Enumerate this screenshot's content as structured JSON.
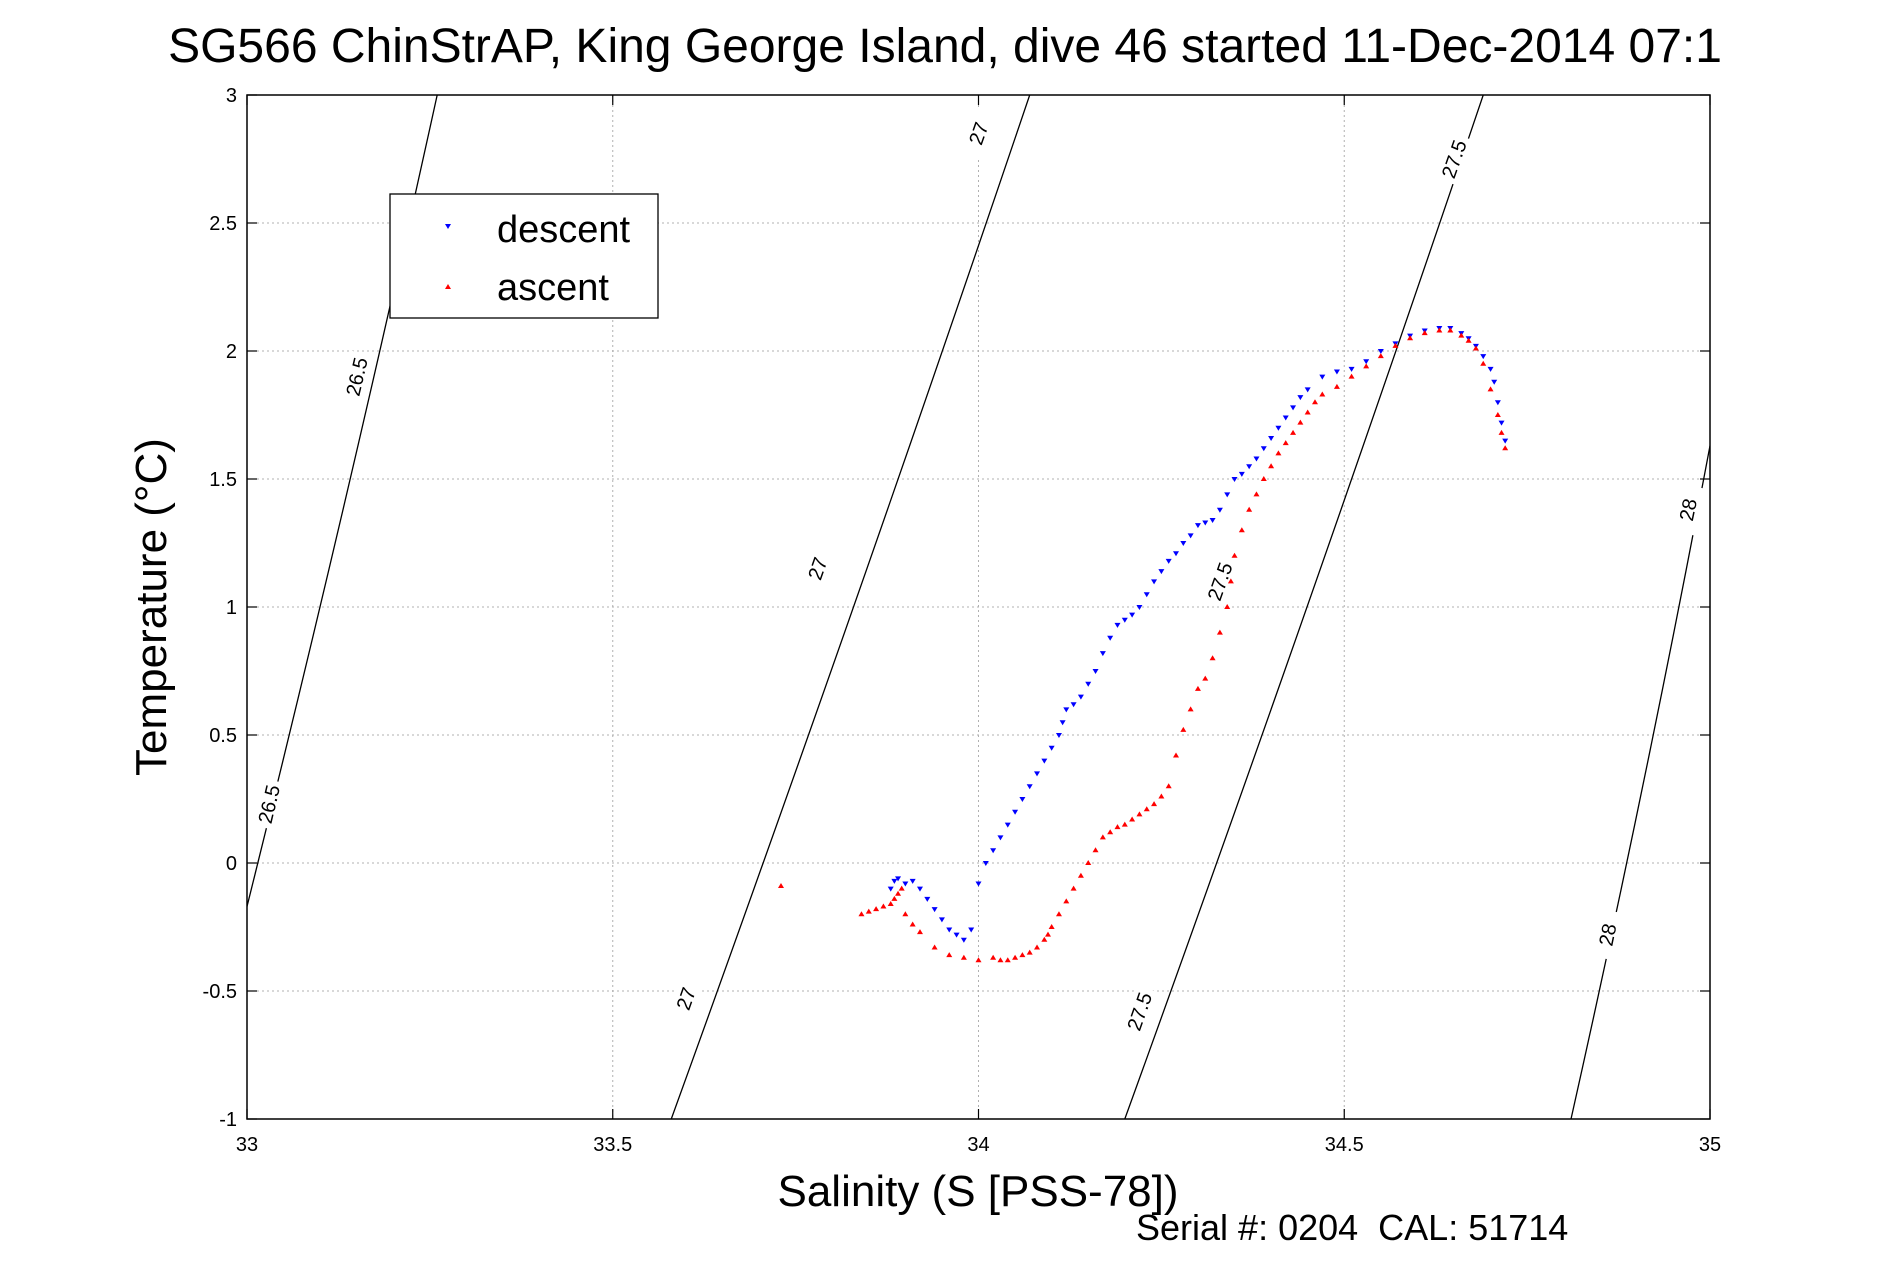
{
  "chart_data": {
    "type": "scatter",
    "title": "SG566 ChinStrAP, King George Island, dive 46 started 11-Dec-2014 07:1",
    "xlabel": "Salinity (S [PSS-78])",
    "ylabel": "Temperature (°C)",
    "xlim": [
      33,
      35
    ],
    "ylim": [
      -1,
      3
    ],
    "x_ticks": [
      33,
      33.5,
      34,
      34.5,
      35
    ],
    "x_tick_labels": [
      "33",
      "33.5",
      "34",
      "34.5",
      "35"
    ],
    "y_ticks": [
      -1,
      -0.5,
      0,
      0.5,
      1,
      1.5,
      2,
      2.5,
      3
    ],
    "y_tick_labels": [
      "-1",
      "-0.5",
      "0",
      "0.5",
      "1",
      "1.5",
      "2",
      "2.5",
      "3"
    ],
    "grid": true,
    "legend_position": "top-left",
    "footer": "Serial #: 0204  CAL: 51714",
    "colors": {
      "descent": "#0000ff",
      "ascent": "#ff0000",
      "contour": "#000000",
      "grid": "#b0b0b0"
    },
    "contours": [
      {
        "sigma": 26.5,
        "label": "26.5",
        "points": [
          [
            33.0,
            -0.17
          ],
          [
            33.26,
            3.0
          ]
        ],
        "label_positions": [
          [
            33.15,
            1.9
          ],
          [
            33.03,
            0.23
          ]
        ]
      },
      {
        "sigma": 27,
        "label": "27",
        "points": [
          [
            33.58,
            -1.0
          ],
          [
            34.07,
            3.0
          ]
        ],
        "label_positions": [
          [
            34.0,
            2.85
          ],
          [
            33.78,
            1.15
          ],
          [
            33.6,
            -0.53
          ]
        ]
      },
      {
        "sigma": 27.5,
        "label": "27.5",
        "points": [
          [
            34.2,
            -1.0
          ],
          [
            34.69,
            3.0
          ]
        ],
        "label_positions": [
          [
            34.65,
            2.75
          ],
          [
            34.33,
            1.1
          ],
          [
            34.22,
            -0.58
          ]
        ]
      },
      {
        "sigma": 28,
        "label": "28",
        "points": [
          [
            34.81,
            -1.0
          ],
          [
            35.0,
            1.63
          ]
        ],
        "label_positions": [
          [
            34.97,
            1.38
          ],
          [
            34.86,
            -0.28
          ]
        ]
      }
    ],
    "series": [
      {
        "name": "descent",
        "marker": "triangle-down",
        "x": [
          34.72,
          34.715,
          34.71,
          34.705,
          34.7,
          34.69,
          34.68,
          34.67,
          34.66,
          34.645,
          34.63,
          34.61,
          34.59,
          34.57,
          34.55,
          34.53,
          34.51,
          34.49,
          34.47,
          34.45,
          34.44,
          34.43,
          34.42,
          34.41,
          34.4,
          34.39,
          34.38,
          34.37,
          34.36,
          34.35,
          34.34,
          34.33,
          34.32,
          34.31,
          34.3,
          34.29,
          34.28,
          34.27,
          34.26,
          34.25,
          34.24,
          34.23,
          34.22,
          34.21,
          34.2,
          34.19,
          34.18,
          34.17,
          34.16,
          34.15,
          34.14,
          34.13,
          34.12,
          34.115,
          34.11,
          34.1,
          34.09,
          34.08,
          34.07,
          34.06,
          34.05,
          34.04,
          34.03,
          34.02,
          34.01,
          34.0,
          33.99,
          33.98,
          33.97,
          33.96,
          33.95,
          33.94,
          33.93,
          33.92,
          33.91,
          33.9,
          33.89,
          33.885,
          33.88
        ],
        "y": [
          1.65,
          1.72,
          1.8,
          1.88,
          1.93,
          1.98,
          2.02,
          2.05,
          2.07,
          2.09,
          2.09,
          2.08,
          2.06,
          2.03,
          2.0,
          1.96,
          1.93,
          1.92,
          1.9,
          1.85,
          1.82,
          1.78,
          1.74,
          1.7,
          1.66,
          1.62,
          1.58,
          1.55,
          1.52,
          1.5,
          1.44,
          1.38,
          1.34,
          1.33,
          1.32,
          1.28,
          1.25,
          1.21,
          1.18,
          1.14,
          1.1,
          1.05,
          1.0,
          0.97,
          0.95,
          0.93,
          0.88,
          0.82,
          0.75,
          0.7,
          0.65,
          0.62,
          0.6,
          0.55,
          0.5,
          0.45,
          0.4,
          0.35,
          0.3,
          0.25,
          0.2,
          0.15,
          0.1,
          0.05,
          0.0,
          -0.08,
          -0.26,
          -0.3,
          -0.28,
          -0.26,
          -0.22,
          -0.18,
          -0.14,
          -0.1,
          -0.07,
          -0.08,
          -0.06,
          -0.07,
          -0.1
        ]
      },
      {
        "name": "ascent",
        "marker": "triangle-up",
        "x": [
          34.72,
          34.715,
          34.71,
          34.7,
          34.69,
          34.68,
          34.67,
          34.66,
          34.645,
          34.63,
          34.61,
          34.59,
          34.57,
          34.55,
          34.53,
          34.51,
          34.49,
          34.47,
          34.46,
          34.45,
          34.44,
          34.43,
          34.42,
          34.41,
          34.4,
          34.39,
          34.38,
          34.37,
          34.36,
          34.35,
          34.345,
          34.34,
          34.33,
          34.32,
          34.31,
          34.3,
          34.29,
          34.28,
          34.27,
          34.26,
          34.25,
          34.24,
          34.23,
          34.22,
          34.21,
          34.2,
          34.19,
          34.18,
          34.17,
          34.16,
          34.15,
          34.14,
          34.13,
          34.12,
          34.11,
          34.1,
          34.095,
          34.09,
          34.08,
          34.07,
          34.06,
          34.05,
          34.04,
          34.03,
          34.02,
          34.0,
          33.98,
          33.96,
          33.94,
          33.92,
          33.91,
          33.9,
          33.895,
          33.89,
          33.885,
          33.88,
          33.87,
          33.86,
          33.85,
          33.84,
          33.73
        ],
        "y": [
          1.62,
          1.68,
          1.75,
          1.85,
          1.95,
          2.01,
          2.04,
          2.06,
          2.08,
          2.08,
          2.07,
          2.05,
          2.02,
          1.98,
          1.94,
          1.9,
          1.86,
          1.83,
          1.8,
          1.76,
          1.72,
          1.68,
          1.64,
          1.6,
          1.55,
          1.5,
          1.44,
          1.38,
          1.3,
          1.2,
          1.1,
          1.0,
          0.9,
          0.8,
          0.72,
          0.68,
          0.6,
          0.52,
          0.42,
          0.3,
          0.26,
          0.23,
          0.21,
          0.19,
          0.17,
          0.15,
          0.14,
          0.12,
          0.1,
          0.05,
          0.0,
          -0.05,
          -0.1,
          -0.15,
          -0.2,
          -0.25,
          -0.28,
          -0.3,
          -0.33,
          -0.35,
          -0.36,
          -0.37,
          -0.38,
          -0.38,
          -0.37,
          -0.38,
          -0.37,
          -0.36,
          -0.33,
          -0.27,
          -0.24,
          -0.2,
          -0.1,
          -0.12,
          -0.14,
          -0.16,
          -0.17,
          -0.18,
          -0.19,
          -0.2,
          -0.09
        ]
      }
    ]
  }
}
